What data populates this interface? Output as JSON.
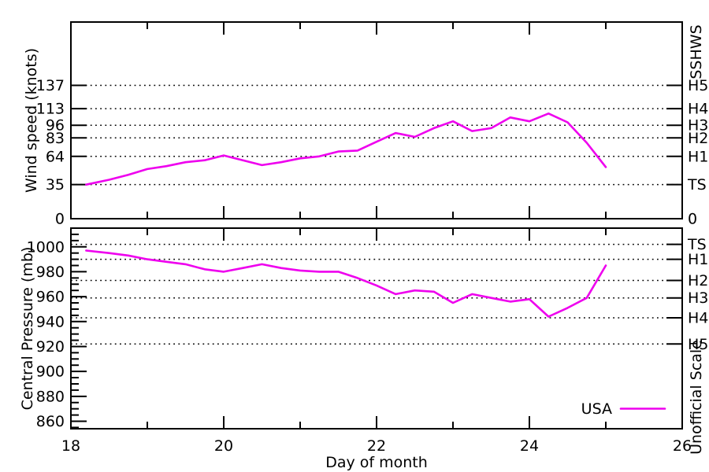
{
  "styles": {
    "line_color": "#ee00ee",
    "axis_color": "#000000",
    "background": "#ffffff"
  },
  "legend": {
    "label": "USA"
  },
  "chart_data": [
    {
      "id": "wind_speed",
      "type": "line",
      "title": "",
      "ylabel": "Wind speed (knots)",
      "y2label": "SSHWS",
      "xlabel": "",
      "xlim": [
        18,
        26
      ],
      "ylim": [
        0,
        202
      ],
      "xticks": [
        18,
        20,
        22,
        24,
        26
      ],
      "xminor": [
        19,
        21,
        23,
        25
      ],
      "show_x_labels": false,
      "yticks": [
        {
          "v": 0,
          "label": "0"
        },
        {
          "v": 35,
          "label": "35"
        },
        {
          "v": 64,
          "label": "64"
        },
        {
          "v": 83,
          "label": "83"
        },
        {
          "v": 96,
          "label": "96"
        },
        {
          "v": 113,
          "label": "113"
        },
        {
          "v": 137,
          "label": "137"
        }
      ],
      "y2ticks": [
        {
          "v": 0,
          "label": "0"
        },
        {
          "v": 35,
          "label": "TS"
        },
        {
          "v": 64,
          "label": "H1"
        },
        {
          "v": 83,
          "label": "H2"
        },
        {
          "v": 96,
          "label": "H3"
        },
        {
          "v": 113,
          "label": "H4"
        },
        {
          "v": 137,
          "label": "H5"
        }
      ],
      "grid_values": [
        35,
        64,
        83,
        96,
        113,
        137
      ],
      "series": [
        {
          "name": "USA",
          "x": [
            18.2,
            18.5,
            18.75,
            19.0,
            19.25,
            19.5,
            19.75,
            20.0,
            20.25,
            20.5,
            20.75,
            21.0,
            21.25,
            21.5,
            21.75,
            22.0,
            22.25,
            22.5,
            22.75,
            23.0,
            23.25,
            23.5,
            23.75,
            24.0,
            24.25,
            24.5,
            24.75,
            25.0
          ],
          "y": [
            35,
            40,
            45,
            51,
            54,
            58,
            60,
            65,
            60,
            55,
            58,
            62,
            64,
            69,
            70,
            79,
            88,
            84,
            93,
            100,
            90,
            93,
            104,
            100,
            108,
            99,
            78,
            53
          ]
        }
      ]
    },
    {
      "id": "central_pressure",
      "type": "line",
      "title": "",
      "ylabel": "Central Pressure (mb)",
      "y2label": "Unofficial Scale",
      "xlabel": "Day of month",
      "xlim": [
        18,
        26
      ],
      "ylim": [
        854,
        1015
      ],
      "xticks": [
        18,
        20,
        22,
        24,
        26
      ],
      "xminor": [
        19,
        21,
        23,
        25
      ],
      "show_x_labels": true,
      "yminor_step": 5,
      "yticks": [
        {
          "v": 860,
          "label": "860"
        },
        {
          "v": 880,
          "label": "880"
        },
        {
          "v": 900,
          "label": "900"
        },
        {
          "v": 920,
          "label": "920"
        },
        {
          "v": 940,
          "label": "940"
        },
        {
          "v": 960,
          "label": "960"
        },
        {
          "v": 980,
          "label": "980"
        },
        {
          "v": 1000,
          "label": "1000"
        }
      ],
      "y2ticks": [
        {
          "v": 1002,
          "label": "TS"
        },
        {
          "v": 990,
          "label": "H1"
        },
        {
          "v": 973,
          "label": "H2"
        },
        {
          "v": 959,
          "label": "H3"
        },
        {
          "v": 943,
          "label": "H4"
        },
        {
          "v": 922,
          "label": "H5"
        }
      ],
      "grid_values": [
        1002,
        990,
        973,
        959,
        943,
        922
      ],
      "series": [
        {
          "name": "USA",
          "x": [
            18.2,
            18.5,
            18.75,
            19.0,
            19.25,
            19.5,
            19.75,
            20.0,
            20.25,
            20.5,
            20.75,
            21.0,
            21.25,
            21.5,
            21.75,
            22.0,
            22.25,
            22.5,
            22.75,
            23.0,
            23.25,
            23.5,
            23.75,
            24.0,
            24.25,
            24.5,
            24.75,
            25.0
          ],
          "y": [
            997,
            995,
            993,
            990,
            988,
            986,
            982,
            980,
            983,
            986,
            983,
            981,
            980,
            980,
            975,
            969,
            962,
            965,
            964,
            955,
            962,
            959,
            956,
            958,
            944,
            951,
            959,
            985
          ]
        }
      ]
    }
  ]
}
